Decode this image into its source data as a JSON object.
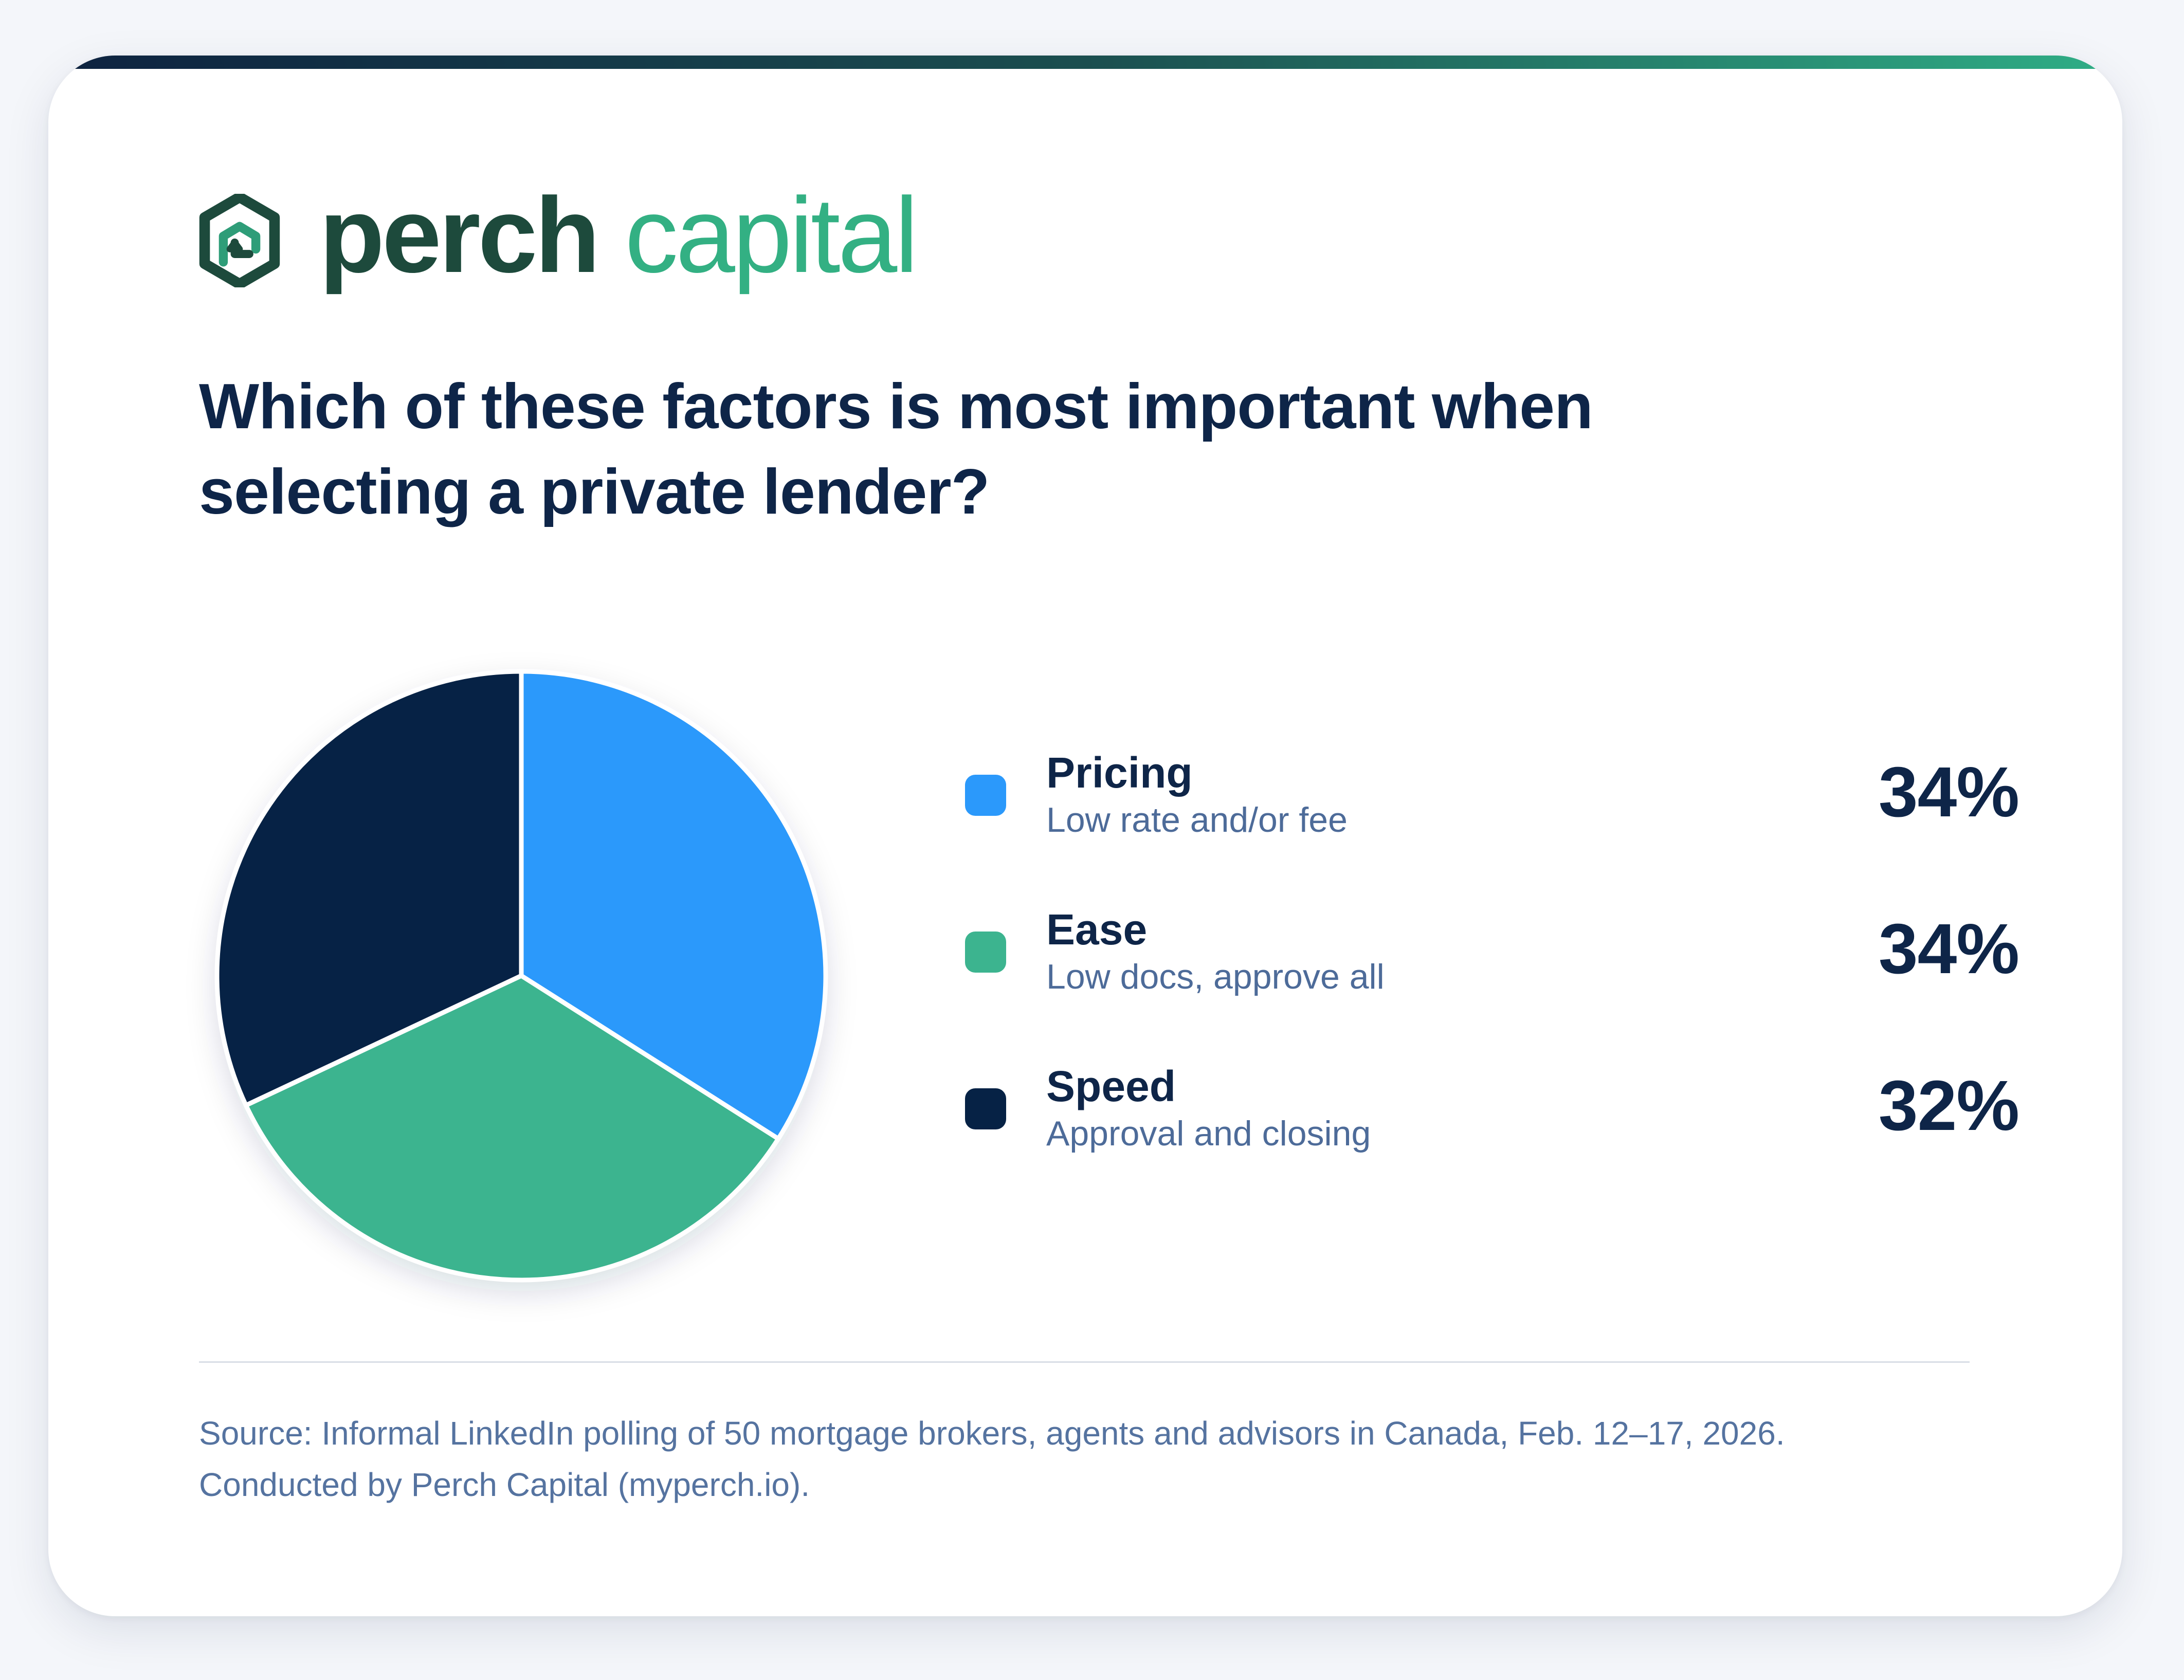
{
  "brand": {
    "name_part1": "perch",
    "name_part2": "capital",
    "logo_icon": "hexagon-house-arrow-icon",
    "colors": {
      "dark_green": "#1d4a3c",
      "light_green": "#33b083"
    }
  },
  "question": "Which of these factors is most important when selecting a private lender?",
  "chart_data": {
    "type": "pie",
    "title": "Which of these factors is most important when selecting a private lender?",
    "unit": "%",
    "slices": [
      {
        "label": "Pricing",
        "description": "Low rate and/or fee",
        "value": 34,
        "display": "34%",
        "color": "#2b99fb"
      },
      {
        "label": "Ease",
        "description": "Low docs, approve all",
        "value": 34,
        "display": "34%",
        "color": "#3cb48f"
      },
      {
        "label": "Speed",
        "description": "Approval and closing",
        "value": 32,
        "display": "32%",
        "color": "#062245"
      }
    ],
    "legend_position": "right"
  },
  "source": {
    "line1": "Source: Informal LinkedIn polling of 50 mortgage brokers, agents and advisors in Canada, Feb. 12–17, 2026.",
    "line2": "Conducted by Perch Capital (myperch.io)."
  },
  "theme": {
    "accent_gradient": [
      "#0d2240",
      "#1b4e4f",
      "#2fae86"
    ],
    "text_primary": "#0e2548",
    "text_secondary": "#4d6b99"
  }
}
